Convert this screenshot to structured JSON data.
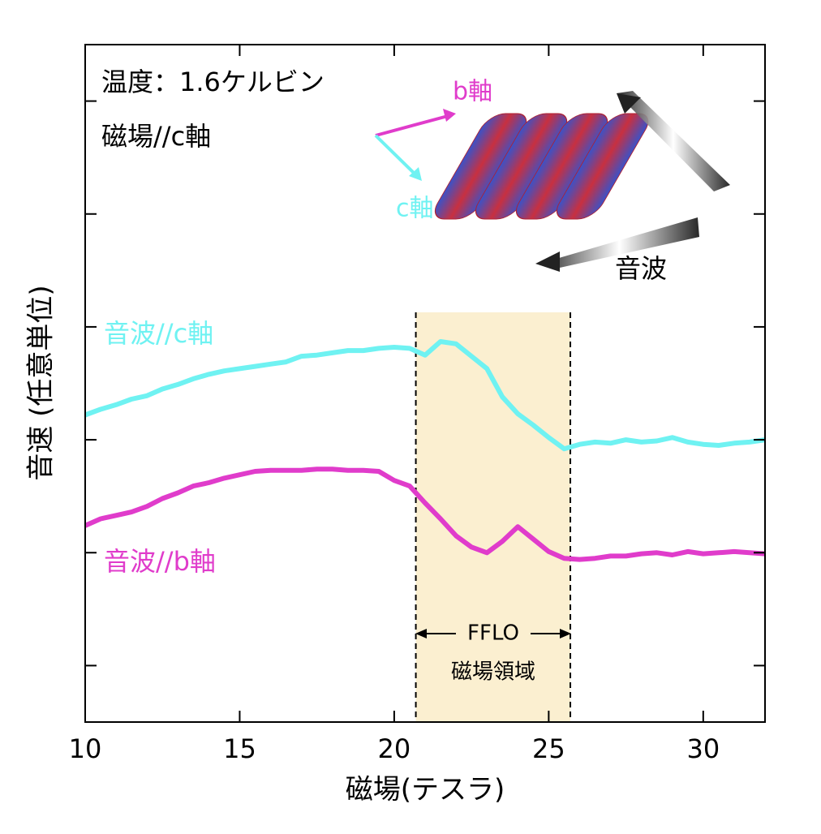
{
  "chart_data": {
    "type": "line",
    "x_label": "磁場(テスラ)",
    "y_label": "音速 (任意単位)",
    "annotations": {
      "temperature": "温度：1.6ケルビン",
      "field": "磁場//c軸",
      "b_axis": "b軸",
      "c_axis": "c軸",
      "sound": "音波",
      "region_top": "FFLO",
      "region_bottom": "磁場領域"
    },
    "shaded_region": [
      20.7,
      25.7
    ],
    "shaded_color": "#fbefd0",
    "x": [
      10,
      10.5,
      11,
      11.5,
      12,
      12.5,
      13,
      13.5,
      14,
      14.5,
      15,
      15.5,
      16,
      16.5,
      17,
      17.5,
      18,
      18.5,
      19,
      19.5,
      20,
      20.5,
      21,
      21.5,
      22,
      22.5,
      23,
      23.5,
      24,
      24.5,
      25,
      25.5,
      26,
      26.5,
      27,
      27.5,
      28,
      28.5,
      29,
      29.5,
      30,
      30.5,
      31,
      31.5,
      32
    ],
    "series": [
      {
        "name": "音波//c軸",
        "color": "#6ff2f2",
        "values": [
          2.72,
          2.77,
          2.81,
          2.86,
          2.89,
          2.95,
          2.99,
          3.04,
          3.08,
          3.11,
          3.13,
          3.15,
          3.17,
          3.19,
          3.24,
          3.25,
          3.27,
          3.29,
          3.29,
          3.31,
          3.32,
          3.31,
          3.25,
          3.37,
          3.35,
          3.24,
          3.13,
          2.88,
          2.73,
          2.63,
          2.52,
          2.42,
          2.46,
          2.48,
          2.47,
          2.5,
          2.48,
          2.49,
          2.52,
          2.48,
          2.46,
          2.45,
          2.47,
          2.48,
          2.5
        ]
      },
      {
        "name": "音波//b軸",
        "color": "#e03ccb",
        "values": [
          1.74,
          1.8,
          1.83,
          1.86,
          1.91,
          1.98,
          2.03,
          2.09,
          2.12,
          2.16,
          2.19,
          2.22,
          2.23,
          2.23,
          2.23,
          2.24,
          2.24,
          2.23,
          2.23,
          2.22,
          2.14,
          2.09,
          1.94,
          1.8,
          1.65,
          1.55,
          1.5,
          1.6,
          1.73,
          1.62,
          1.51,
          1.45,
          1.44,
          1.45,
          1.47,
          1.47,
          1.49,
          1.5,
          1.48,
          1.51,
          1.49,
          1.5,
          1.51,
          1.5,
          1.49
        ]
      }
    ],
    "xlim": [
      10,
      32
    ],
    "xticks": [
      10,
      15,
      20,
      25,
      30
    ],
    "ylim": [
      0,
      6
    ],
    "yticks": [
      0.5,
      1.5,
      2.5,
      3.5,
      4.5,
      5.5
    ]
  }
}
